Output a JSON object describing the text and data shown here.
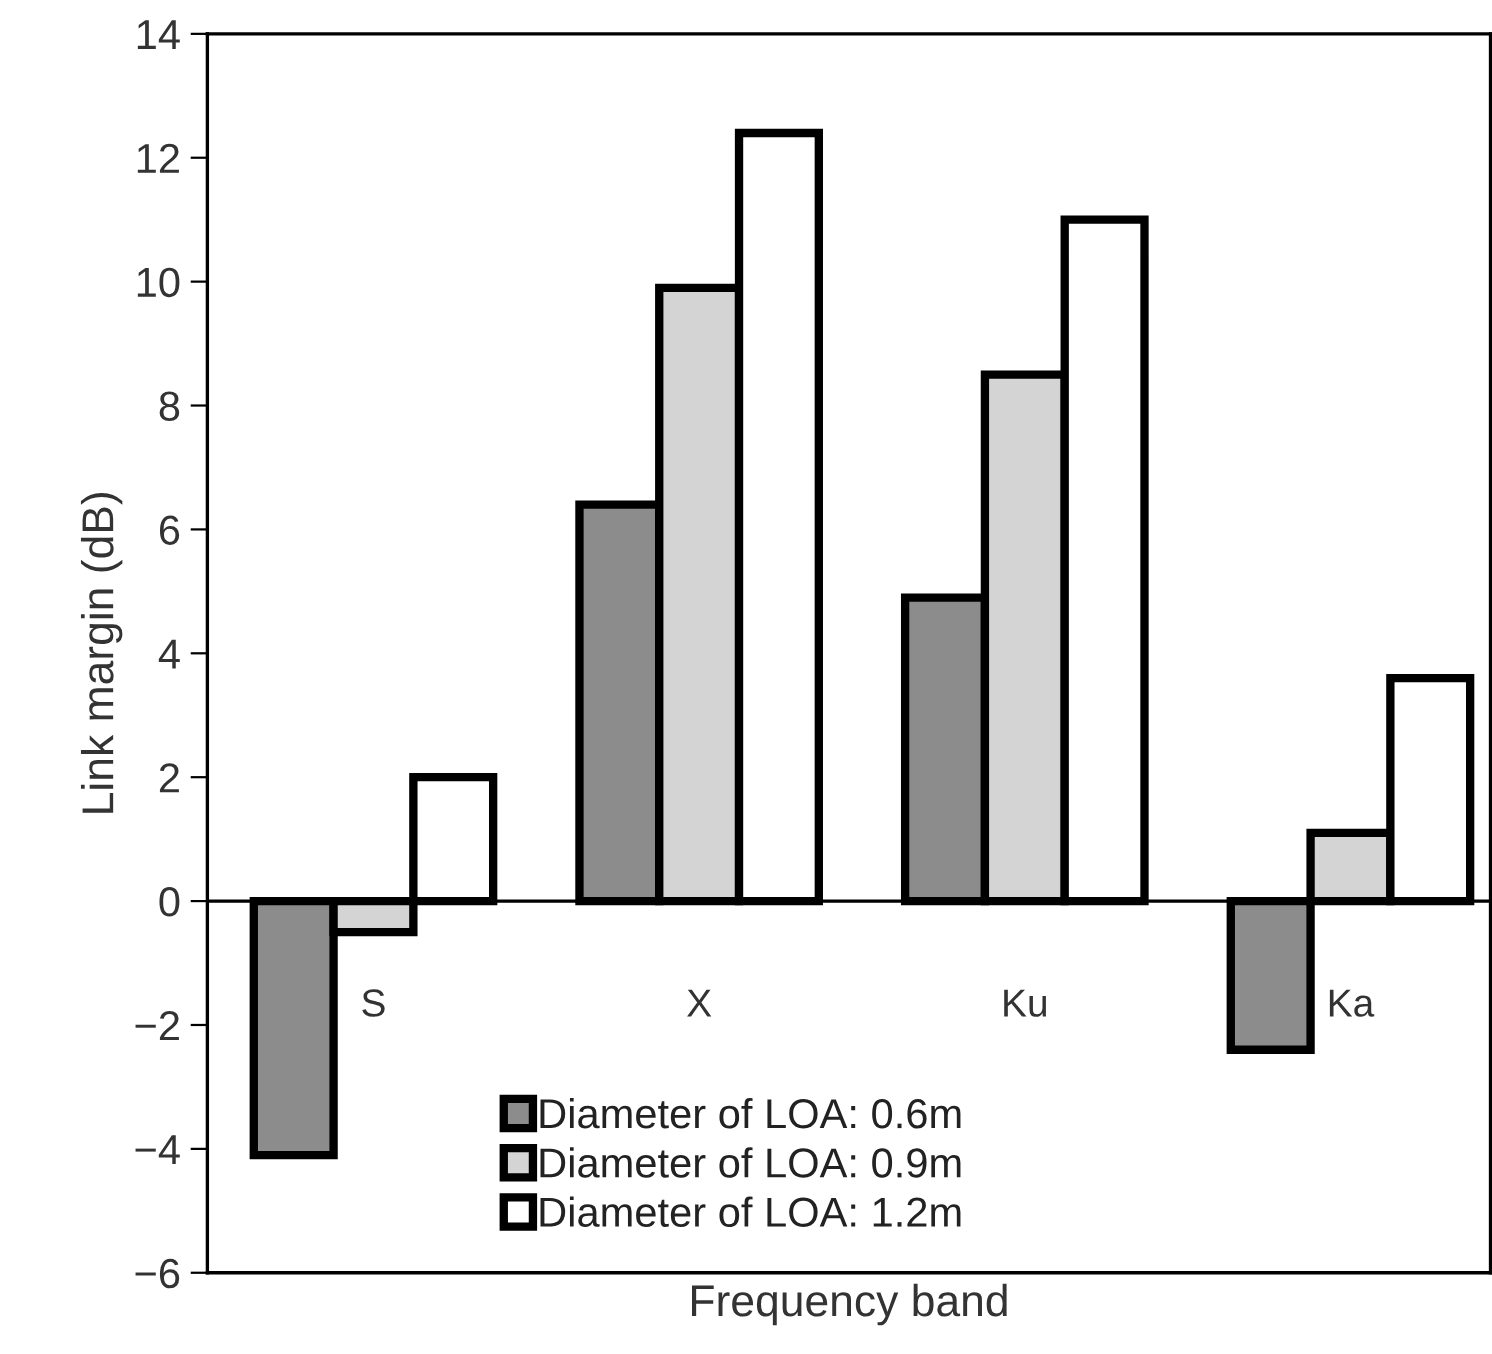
{
  "chart_data": {
    "type": "bar",
    "xlabel": "Frequency band",
    "ylabel": "Link margin (dB)",
    "categories": [
      "S",
      "X",
      "Ku",
      "Ka"
    ],
    "series": [
      {
        "name": "Diameter of LOA: 0.6m",
        "color": "#8c8c8c",
        "values": [
          -4.1,
          6.4,
          4.9,
          -2.4
        ]
      },
      {
        "name": "Diameter of LOA: 0.9m",
        "color": "#d4d4d4",
        "values": [
          -0.5,
          9.9,
          8.5,
          1.1
        ]
      },
      {
        "name": "Diameter of LOA: 1.2m",
        "color": "#ffffff",
        "values": [
          2.0,
          12.4,
          11.0,
          3.6
        ]
      }
    ],
    "ylim": [
      -6,
      14
    ],
    "yticks": [
      -6,
      -4,
      -2,
      0,
      2,
      4,
      6,
      8,
      10,
      12,
      14
    ],
    "grid": false,
    "legend": "bottom"
  }
}
